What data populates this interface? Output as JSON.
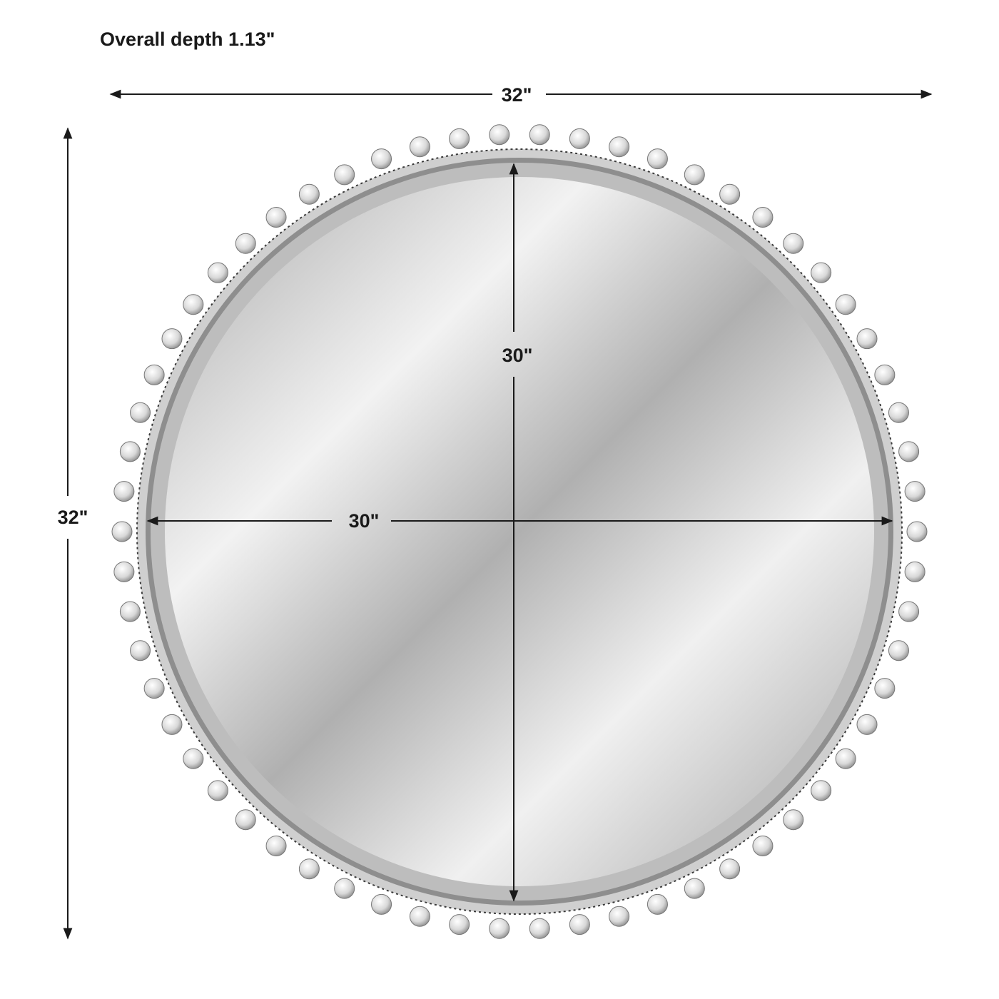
{
  "title": "Overall depth 1.13\"",
  "dimensions": {
    "overall_width": "32\"",
    "overall_height": "32\"",
    "mirror_width": "30\"",
    "mirror_height": "30\""
  },
  "colors": {
    "line": "#1a1a1a",
    "frame": "#b9b9b9",
    "mirror_light": "#f4f4f4",
    "mirror_dark": "#9a9a9a"
  }
}
